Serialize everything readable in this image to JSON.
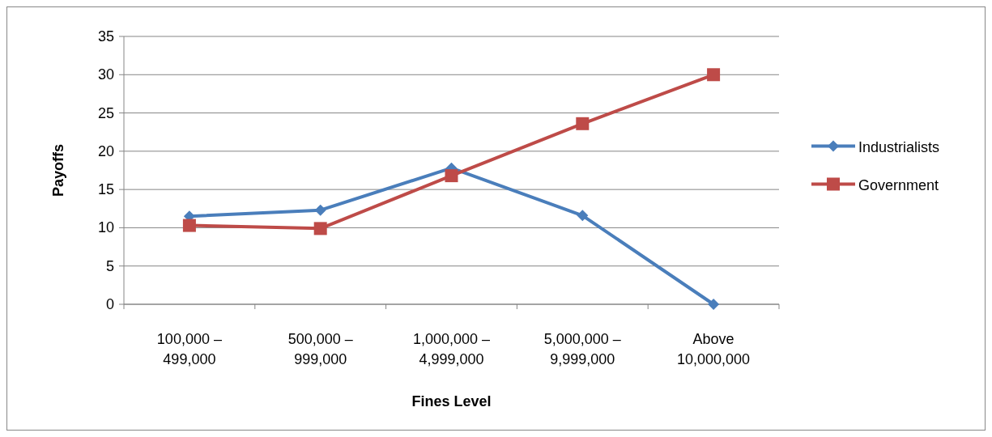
{
  "chart_data": {
    "type": "line",
    "xlabel": "Fines Level",
    "ylabel": "Payoffs",
    "categories": [
      "100,000 –\n499,000",
      "500,000 –\n999,000",
      "1,000,000 –\n4,999,000",
      "5,000,000 –\n9,999,000",
      "Above\n10,000,000"
    ],
    "series": [
      {
        "name": "Industrialists",
        "color": "#4a7ebb",
        "marker": "diamond",
        "values": [
          11.5,
          12.3,
          17.8,
          11.6,
          0
        ]
      },
      {
        "name": "Government",
        "color": "#be4b48",
        "marker": "square",
        "values": [
          10.3,
          9.9,
          16.8,
          23.6,
          30
        ]
      }
    ],
    "ylim": [
      0,
      35
    ],
    "yticks": [
      0,
      5,
      10,
      15,
      20,
      25,
      30,
      35
    ],
    "grid": "y",
    "legend": "right"
  }
}
